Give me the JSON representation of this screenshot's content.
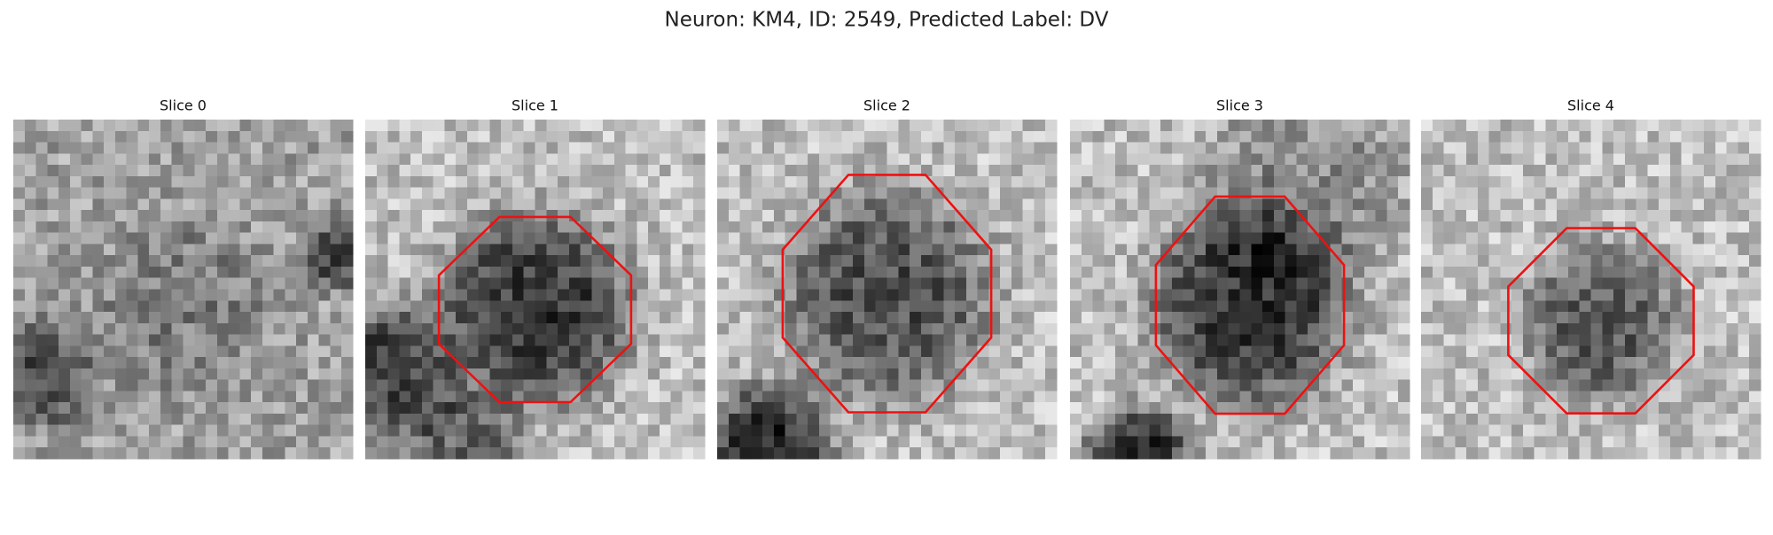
{
  "title": "Neuron: KM4, ID: 2549, Predicted Label: DV",
  "slices": [
    {
      "title": "Slice 0"
    },
    {
      "title": "Slice 1"
    },
    {
      "title": "Slice 2"
    },
    {
      "title": "Slice 3"
    },
    {
      "title": "Slice 4"
    }
  ]
}
